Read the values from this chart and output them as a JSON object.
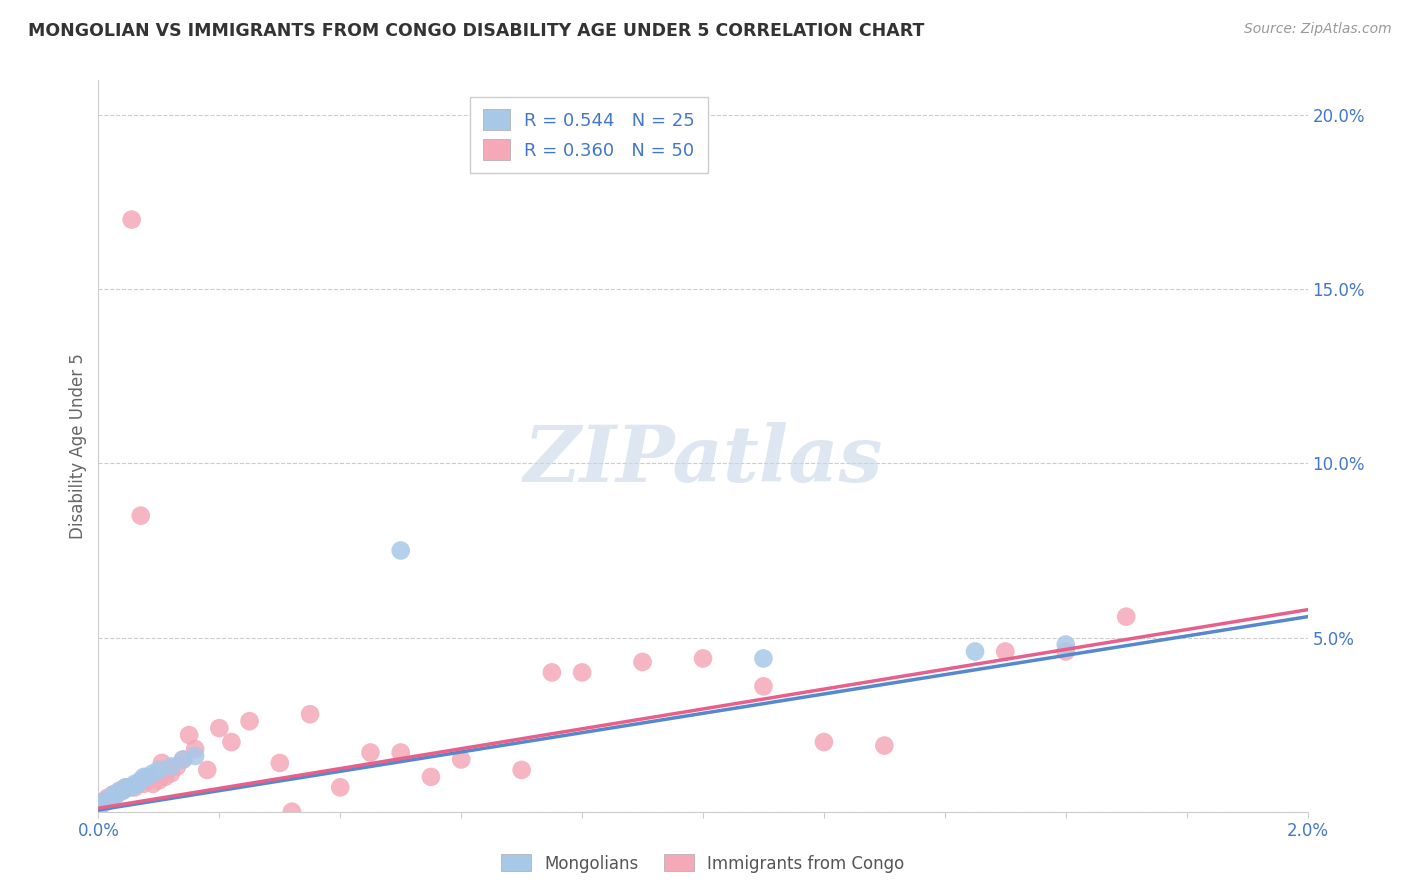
{
  "title": "MONGOLIAN VS IMMIGRANTS FROM CONGO DISABILITY AGE UNDER 5 CORRELATION CHART",
  "source": "Source: ZipAtlas.com",
  "ylabel": "Disability Age Under 5",
  "xlim": [
    0.0,
    0.02
  ],
  "ylim": [
    0.0,
    0.21
  ],
  "ytick_positions": [
    0.0,
    0.05,
    0.1,
    0.15,
    0.2
  ],
  "ytick_labels": [
    "",
    "5.0%",
    "10.0%",
    "15.0%",
    "20.0%"
  ],
  "mongolian_color": "#a8c8e8",
  "congo_color": "#f4a8b8",
  "mongolian_line_color": "#5588cc",
  "congo_line_color": "#e8608a",
  "mongolian_x": [
    5e-05,
    0.0001,
    0.00015,
    0.0002,
    0.00025,
    0.0003,
    0.00035,
    0.0004,
    0.00045,
    0.0005,
    0.00055,
    0.0006,
    0.00065,
    0.0007,
    0.00075,
    0.0008,
    0.0009,
    0.001,
    0.0012,
    0.0014,
    0.0016,
    0.005,
    0.011,
    0.0145,
    0.016
  ],
  "mongolian_y": [
    0.002,
    0.003,
    0.003,
    0.004,
    0.005,
    0.005,
    0.006,
    0.006,
    0.007,
    0.007,
    0.007,
    0.008,
    0.008,
    0.009,
    0.01,
    0.01,
    0.011,
    0.012,
    0.013,
    0.015,
    0.016,
    0.075,
    0.044,
    0.046,
    0.048
  ],
  "congo_x": [
    5e-05,
    8e-05,
    0.0001,
    0.00015,
    0.0002,
    0.00025,
    0.0003,
    0.00035,
    0.0004,
    0.00045,
    0.0005,
    0.00055,
    0.0006,
    0.00065,
    0.0007,
    0.00075,
    0.0008,
    0.00085,
    0.0009,
    0.001,
    0.00105,
    0.0011,
    0.0012,
    0.0013,
    0.0014,
    0.0015,
    0.0016,
    0.0018,
    0.002,
    0.0022,
    0.0025,
    0.003,
    0.0032,
    0.0035,
    0.004,
    0.0045,
    0.005,
    0.0055,
    0.006,
    0.007,
    0.0075,
    0.008,
    0.009,
    0.01,
    0.011,
    0.012,
    0.013,
    0.015,
    0.016,
    0.017
  ],
  "congo_y": [
    0.002,
    0.003,
    0.003,
    0.004,
    0.004,
    0.005,
    0.005,
    0.006,
    0.006,
    0.007,
    0.007,
    0.17,
    0.007,
    0.008,
    0.085,
    0.008,
    0.009,
    0.01,
    0.008,
    0.009,
    0.014,
    0.01,
    0.011,
    0.013,
    0.015,
    0.022,
    0.018,
    0.012,
    0.024,
    0.02,
    0.026,
    0.014,
    0.0,
    0.028,
    0.007,
    0.017,
    0.017,
    0.01,
    0.015,
    0.012,
    0.04,
    0.04,
    0.043,
    0.044,
    0.036,
    0.02,
    0.019,
    0.046,
    0.046,
    0.056
  ],
  "mong_line_x": [
    0.0,
    0.02
  ],
  "mong_line_y": [
    0.0005,
    0.056
  ],
  "congo_line_x": [
    0.0,
    0.02
  ],
  "congo_line_y": [
    0.001,
    0.058
  ]
}
